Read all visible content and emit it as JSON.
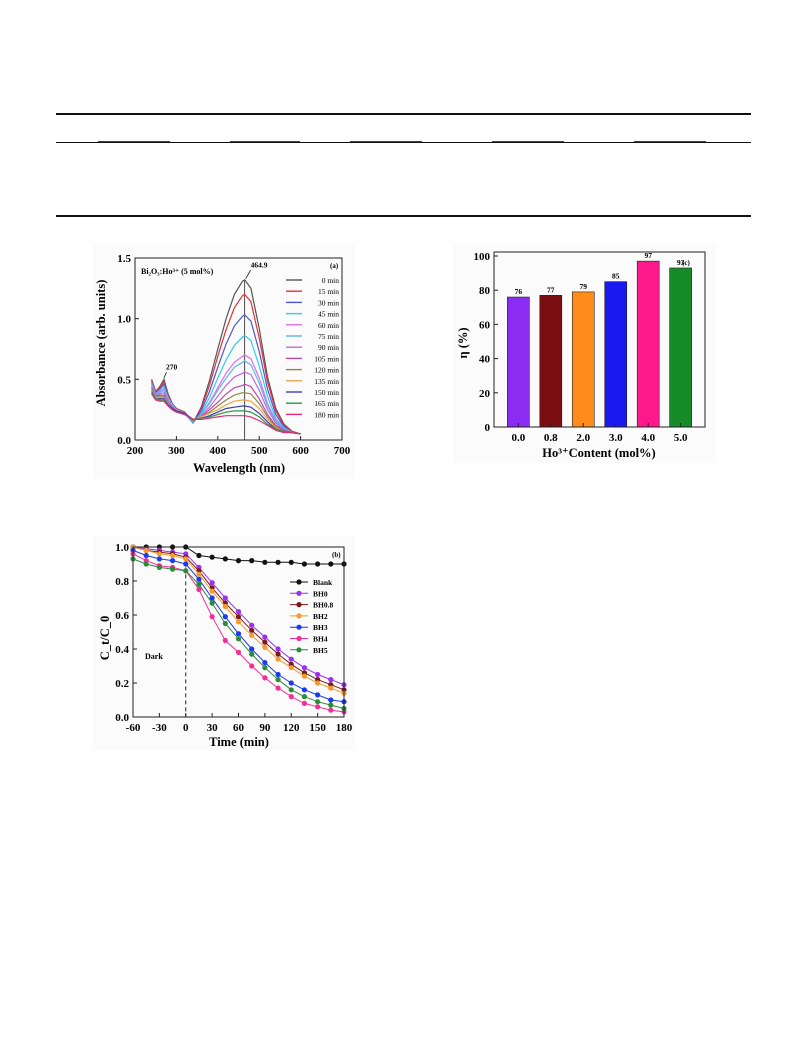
{
  "chart_data": [
    {
      "type": "line",
      "panel_label": "(a)",
      "annotation_title": "Bi₂O₃:Ho³⁺ (5 mol%)",
      "peak_labels": [
        "464.9",
        "270"
      ],
      "xlabel": "Wavelength (nm)",
      "ylabel": "Absorbance (arb. units)",
      "xlim": [
        200,
        700
      ],
      "ylim": [
        0,
        1.5
      ],
      "x_ticks": [
        "200",
        "300",
        "400",
        "500",
        "600",
        "700"
      ],
      "y_ticks": [
        "0.0",
        "0.5",
        "1.0",
        "1.5"
      ],
      "legend_position": "top-right",
      "x": [
        240,
        250,
        260,
        270,
        280,
        290,
        300,
        320,
        340,
        360,
        380,
        400,
        420,
        440,
        460,
        465,
        480,
        500,
        520,
        540,
        560,
        580,
        600
      ],
      "series": [
        {
          "name": "0 min",
          "color": "#555555",
          "peak": 1.32,
          "values": [
            0.5,
            0.4,
            0.44,
            0.5,
            0.38,
            0.3,
            0.26,
            0.23,
            0.14,
            0.27,
            0.49,
            0.75,
            1.0,
            1.2,
            1.31,
            1.32,
            1.25,
            0.92,
            0.52,
            0.26,
            0.13,
            0.07,
            0.05
          ]
        },
        {
          "name": "15 min",
          "color": "#e8313a",
          "peak": 1.2,
          "values": [
            0.49,
            0.4,
            0.43,
            0.48,
            0.37,
            0.3,
            0.26,
            0.23,
            0.14,
            0.26,
            0.45,
            0.69,
            0.91,
            1.09,
            1.19,
            1.2,
            1.14,
            0.84,
            0.48,
            0.24,
            0.12,
            0.07,
            0.05
          ]
        },
        {
          "name": "30 min",
          "color": "#4a58d0",
          "peak": 1.03,
          "values": [
            0.48,
            0.39,
            0.42,
            0.46,
            0.36,
            0.29,
            0.25,
            0.22,
            0.14,
            0.24,
            0.4,
            0.6,
            0.79,
            0.94,
            1.02,
            1.03,
            0.98,
            0.73,
            0.42,
            0.21,
            0.11,
            0.06,
            0.05
          ]
        },
        {
          "name": "45 min",
          "color": "#33c9f0",
          "peak": 0.86,
          "values": [
            0.47,
            0.38,
            0.41,
            0.44,
            0.35,
            0.29,
            0.25,
            0.22,
            0.14,
            0.22,
            0.35,
            0.51,
            0.66,
            0.78,
            0.85,
            0.86,
            0.82,
            0.61,
            0.36,
            0.18,
            0.1,
            0.06,
            0.05
          ]
        },
        {
          "name": "60 min",
          "color": "#e06ce8",
          "peak": 0.7,
          "values": [
            0.46,
            0.37,
            0.4,
            0.42,
            0.34,
            0.28,
            0.25,
            0.22,
            0.15,
            0.21,
            0.31,
            0.43,
            0.55,
            0.64,
            0.69,
            0.7,
            0.67,
            0.51,
            0.3,
            0.16,
            0.09,
            0.06,
            0.05
          ]
        },
        {
          "name": "75 min",
          "color": "#5bb8ee",
          "peak": 0.65,
          "values": [
            0.45,
            0.37,
            0.39,
            0.41,
            0.33,
            0.28,
            0.25,
            0.22,
            0.15,
            0.21,
            0.3,
            0.41,
            0.51,
            0.6,
            0.64,
            0.65,
            0.62,
            0.47,
            0.28,
            0.15,
            0.09,
            0.06,
            0.05
          ]
        },
        {
          "name": "90 min",
          "color": "#c06bd6",
          "peak": 0.56,
          "values": [
            0.44,
            0.36,
            0.38,
            0.39,
            0.32,
            0.27,
            0.24,
            0.22,
            0.15,
            0.2,
            0.27,
            0.36,
            0.45,
            0.52,
            0.55,
            0.56,
            0.54,
            0.41,
            0.25,
            0.14,
            0.08,
            0.06,
            0.05
          ]
        },
        {
          "name": "105 min",
          "color": "#c04aa8",
          "peak": 0.46,
          "values": [
            0.43,
            0.36,
            0.37,
            0.37,
            0.31,
            0.27,
            0.24,
            0.22,
            0.16,
            0.19,
            0.25,
            0.31,
            0.38,
            0.43,
            0.45,
            0.46,
            0.44,
            0.34,
            0.21,
            0.12,
            0.08,
            0.06,
            0.05
          ]
        },
        {
          "name": "120 min",
          "color": "#8a8a4a",
          "peak": 0.39,
          "values": [
            0.42,
            0.35,
            0.36,
            0.36,
            0.3,
            0.26,
            0.24,
            0.22,
            0.16,
            0.19,
            0.23,
            0.28,
            0.33,
            0.37,
            0.39,
            0.39,
            0.38,
            0.3,
            0.19,
            0.11,
            0.07,
            0.06,
            0.05
          ]
        },
        {
          "name": "135 min",
          "color": "#f0a24a",
          "peak": 0.33,
          "values": [
            0.41,
            0.35,
            0.35,
            0.35,
            0.3,
            0.26,
            0.24,
            0.22,
            0.17,
            0.19,
            0.22,
            0.25,
            0.29,
            0.32,
            0.33,
            0.33,
            0.32,
            0.26,
            0.17,
            0.1,
            0.07,
            0.06,
            0.05
          ]
        },
        {
          "name": "150 min",
          "color": "#3a3fb0",
          "peak": 0.28,
          "values": [
            0.4,
            0.34,
            0.34,
            0.34,
            0.29,
            0.26,
            0.24,
            0.22,
            0.17,
            0.18,
            0.2,
            0.23,
            0.26,
            0.27,
            0.28,
            0.28,
            0.27,
            0.22,
            0.15,
            0.09,
            0.07,
            0.06,
            0.05
          ]
        },
        {
          "name": "165 min",
          "color": "#2e9a4a",
          "peak": 0.24,
          "values": [
            0.39,
            0.34,
            0.33,
            0.33,
            0.28,
            0.25,
            0.23,
            0.21,
            0.17,
            0.18,
            0.19,
            0.21,
            0.23,
            0.24,
            0.24,
            0.24,
            0.23,
            0.19,
            0.13,
            0.09,
            0.07,
            0.06,
            0.05
          ]
        },
        {
          "name": "180 min",
          "color": "#e02a7a",
          "peak": 0.2,
          "values": [
            0.38,
            0.33,
            0.32,
            0.32,
            0.28,
            0.25,
            0.23,
            0.21,
            0.17,
            0.17,
            0.18,
            0.19,
            0.2,
            0.2,
            0.2,
            0.2,
            0.19,
            0.16,
            0.12,
            0.08,
            0.06,
            0.06,
            0.05
          ]
        }
      ]
    },
    {
      "type": "bar",
      "panel_label": "(c)",
      "xlabel": "Ho³⁺Content (mol%)",
      "ylabel": "η (%)",
      "ylim": [
        0,
        100
      ],
      "y_ticks": [
        "0",
        "20",
        "40",
        "60",
        "80",
        "100"
      ],
      "categories": [
        "0.0",
        "0.8",
        "2.0",
        "3.0",
        "4.0",
        "5.0"
      ],
      "values": [
        76,
        77,
        79,
        85,
        97,
        93
      ],
      "data_labels": [
        "76",
        "77",
        "79",
        "85",
        "97",
        "93"
      ],
      "colors": [
        "#8b2cf2",
        "#7a0e10",
        "#ff8c1a",
        "#1a1aee",
        "#ff1a8c",
        "#178a2a"
      ]
    },
    {
      "type": "line",
      "panel_label": "(b)",
      "annotation": "Dark",
      "xlabel": "Time (min)",
      "ylabel": "C_t/C_0",
      "xlim": [
        -60,
        180
      ],
      "ylim": [
        0,
        1.0
      ],
      "x_ticks": [
        "-60",
        "-30",
        "0",
        "30",
        "60",
        "90",
        "120",
        "150",
        "180"
      ],
      "y_ticks": [
        "0.0",
        "0.2",
        "0.4",
        "0.6",
        "0.8",
        "1.0"
      ],
      "dark_line_x": 0,
      "legend_position": "right",
      "x": [
        -60,
        -45,
        -30,
        -15,
        0,
        15,
        30,
        45,
        60,
        75,
        90,
        105,
        120,
        135,
        150,
        165,
        180
      ],
      "series": [
        {
          "name": "Blank",
          "color": "#111111",
          "values": [
            1.0,
            1.0,
            1.0,
            1.0,
            1.0,
            0.95,
            0.94,
            0.93,
            0.92,
            0.92,
            0.91,
            0.91,
            0.91,
            0.9,
            0.9,
            0.9,
            0.9
          ]
        },
        {
          "name": "BH0",
          "color": "#9b30f0",
          "values": [
            1.0,
            0.99,
            0.98,
            0.97,
            0.96,
            0.88,
            0.79,
            0.7,
            0.62,
            0.54,
            0.47,
            0.4,
            0.34,
            0.29,
            0.25,
            0.22,
            0.19
          ]
        },
        {
          "name": "BH0.8",
          "color": "#7a1a1a",
          "values": [
            1.0,
            0.98,
            0.97,
            0.96,
            0.94,
            0.86,
            0.76,
            0.67,
            0.59,
            0.51,
            0.44,
            0.37,
            0.31,
            0.26,
            0.22,
            0.19,
            0.16
          ]
        },
        {
          "name": "BH2",
          "color": "#f39a2a",
          "values": [
            1.0,
            0.98,
            0.96,
            0.95,
            0.93,
            0.84,
            0.74,
            0.65,
            0.56,
            0.48,
            0.41,
            0.34,
            0.29,
            0.24,
            0.2,
            0.17,
            0.14
          ]
        },
        {
          "name": "BH3",
          "color": "#1a3af0",
          "values": [
            0.98,
            0.95,
            0.93,
            0.92,
            0.9,
            0.81,
            0.7,
            0.59,
            0.49,
            0.4,
            0.32,
            0.25,
            0.2,
            0.16,
            0.13,
            0.1,
            0.09
          ]
        },
        {
          "name": "BH4",
          "color": "#f0309a",
          "values": [
            0.96,
            0.92,
            0.89,
            0.88,
            0.86,
            0.75,
            0.59,
            0.45,
            0.38,
            0.3,
            0.23,
            0.17,
            0.12,
            0.08,
            0.06,
            0.04,
            0.03
          ]
        },
        {
          "name": "BH5",
          "color": "#2e8b3a",
          "values": [
            0.93,
            0.9,
            0.88,
            0.87,
            0.86,
            0.78,
            0.67,
            0.55,
            0.46,
            0.37,
            0.29,
            0.22,
            0.16,
            0.12,
            0.09,
            0.07,
            0.05
          ]
        }
      ]
    }
  ]
}
